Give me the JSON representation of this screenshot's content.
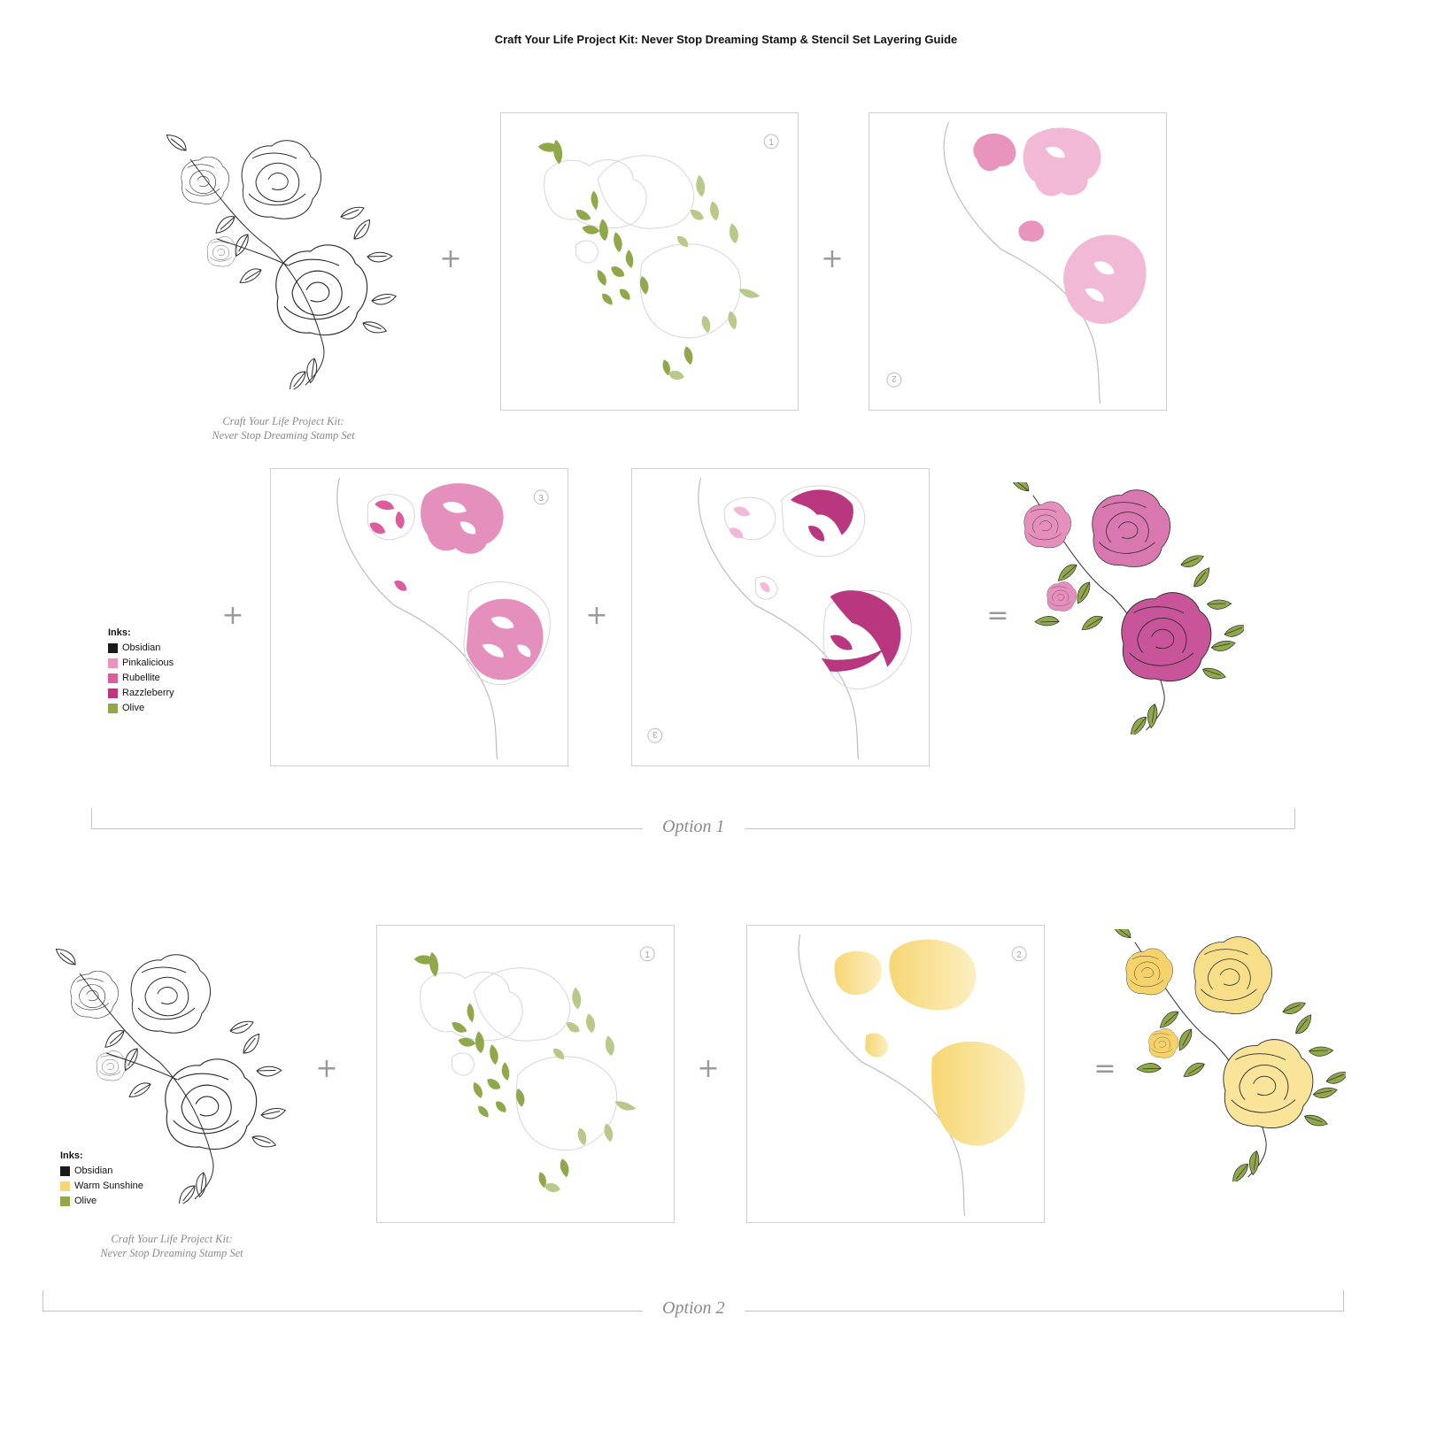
{
  "title": "Craft Your Life Project Kit: Never Stop Dreaming Stamp & Stencil Set Layering Guide",
  "stamp_caption": {
    "line1": "Craft Your Life Project Kit:",
    "line2": "Never Stop Dreaming Stamp Set"
  },
  "operators": {
    "plus": "+",
    "equals": "="
  },
  "option1": {
    "label": "Option 1",
    "inks_heading": "Inks:",
    "inks": [
      {
        "name": "Obsidian",
        "color": "#1a1a1a"
      },
      {
        "name": "Pinkalicious",
        "color": "#e994bd"
      },
      {
        "name": "Rubellite",
        "color": "#dc5c9c"
      },
      {
        "name": "Razzleberry",
        "color": "#b8377e"
      },
      {
        "name": "Olive",
        "color": "#8fa84a"
      }
    ]
  },
  "option2": {
    "label": "Option 2",
    "inks_heading": "Inks:",
    "inks": [
      {
        "name": "Obsidian",
        "color": "#1a1a1a"
      },
      {
        "name": "Warm Sunshine",
        "color": "#f7d774"
      },
      {
        "name": "Olive",
        "color": "#8fa84a"
      }
    ]
  },
  "stencil_numbers": {
    "s1": "1",
    "s2": "2",
    "s3": "3"
  },
  "colors": {
    "leaf": "#8fa84a",
    "leaf_light": "#b9c98a",
    "pink_light": "#f2b9d6",
    "pink": "#e58fbc",
    "pink_mid": "#dc5c9c",
    "magenta": "#b8377e",
    "yellow": "#f7d774",
    "yellow_light": "#fbe9a8",
    "panel_border": "#cfcfcf",
    "outline": "#bdbdbd",
    "guide_text": "#8a8a8a"
  }
}
